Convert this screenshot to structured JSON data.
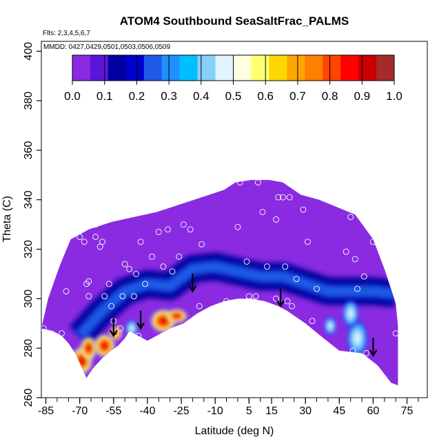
{
  "chart_data": {
    "type": "heatmap",
    "title": "ATOM4 Southbound SeaSaltFrac_PALMS",
    "subtitle_flights": "Flts: 2,3,4,5,6,7",
    "subtitle_dates": "MMDD: 0427,0429,0501,0503,0506,0509",
    "xlabel": "Latitude (deg N)",
    "ylabel": "Theta (C)",
    "xlim": [
      -87,
      84
    ],
    "ylim": [
      260,
      404
    ],
    "x_ticks": [
      -85,
      -70,
      -55,
      -40,
      -25,
      -10,
      5,
      15,
      30,
      45,
      60,
      75
    ],
    "x_tick_labels": [
      "-85",
      "-70",
      "-55",
      "-40",
      "-25",
      "-10",
      "5",
      "15",
      "30",
      "45",
      "60",
      "75"
    ],
    "y_ticks": [
      260,
      280,
      300,
      320,
      340,
      360,
      380,
      400
    ],
    "y_tick_labels": [
      "260",
      "280",
      "300",
      "320",
      "340",
      "360",
      "380",
      "400"
    ],
    "colorbar": {
      "min": 0.0,
      "max": 1.0,
      "ticks": [
        0.0,
        0.1,
        0.2,
        0.3,
        0.4,
        0.5,
        0.6,
        0.7,
        0.8,
        0.9,
        1.0
      ],
      "tick_labels": [
        "0.0",
        "0.1",
        "0.2",
        "0.3",
        "0.4",
        "0.5",
        "0.6",
        "0.7",
        "0.8",
        "0.9",
        "1.0"
      ],
      "colors": [
        "#8a2be2",
        "#5a16d8",
        "#0000a0",
        "#0000cd",
        "#1e5ae6",
        "#1e90ff",
        "#00bfff",
        "#87cefa",
        "#e0f4ff",
        "#ffffe0",
        "#ffff70",
        "#ffd700",
        "#ffa500",
        "#ff7f00",
        "#ff4500",
        "#ff0000",
        "#c80000",
        "#a52a2a"
      ]
    },
    "fill_color": "#8a2be2",
    "domain_top": [
      [
        -87,
        288
      ],
      [
        -84,
        300
      ],
      [
        -79,
        313
      ],
      [
        -74,
        324
      ],
      [
        -66,
        328
      ],
      [
        -56,
        331
      ],
      [
        -46,
        333
      ],
      [
        -36,
        335
      ],
      [
        -26,
        338
      ],
      [
        -16,
        341
      ],
      [
        -6,
        344
      ],
      [
        -1,
        347
      ],
      [
        6,
        348
      ],
      [
        14,
        348
      ],
      [
        20,
        347
      ],
      [
        28,
        342
      ],
      [
        36,
        340
      ],
      [
        44,
        337
      ],
      [
        52,
        334
      ],
      [
        60,
        324
      ],
      [
        65,
        312
      ],
      [
        70,
        298
      ],
      [
        71,
        289
      ]
    ],
    "domain_bottom": [
      [
        71,
        265
      ],
      [
        68,
        266
      ],
      [
        62,
        273
      ],
      [
        55,
        278
      ],
      [
        45,
        279
      ],
      [
        38,
        284
      ],
      [
        30,
        290
      ],
      [
        22,
        295
      ],
      [
        18,
        297
      ],
      [
        12,
        299
      ],
      [
        6,
        300
      ],
      [
        0,
        300
      ],
      [
        -6,
        299
      ],
      [
        -12,
        297
      ],
      [
        -18,
        294
      ],
      [
        -24,
        290
      ],
      [
        -30,
        288
      ],
      [
        -36,
        285
      ],
      [
        -40,
        283
      ],
      [
        -44,
        285
      ],
      [
        -48,
        287
      ],
      [
        -50,
        284
      ],
      [
        -53,
        281
      ],
      [
        -56,
        279
      ],
      [
        -60,
        276
      ],
      [
        -64,
        272
      ],
      [
        -67,
        268
      ],
      [
        -70,
        274
      ],
      [
        -72,
        278
      ],
      [
        -75,
        282
      ],
      [
        -78,
        285
      ],
      [
        -82,
        287
      ],
      [
        -87,
        288
      ]
    ],
    "blue_band": [
      [
        -70,
        285
      ],
      [
        -60,
        295
      ],
      [
        -50,
        303
      ],
      [
        -40,
        306
      ],
      [
        -30,
        305
      ],
      [
        -20,
        312
      ],
      [
        -10,
        313
      ],
      [
        0,
        311
      ],
      [
        10,
        309
      ],
      [
        20,
        309
      ],
      [
        30,
        306
      ],
      [
        40,
        303
      ],
      [
        50,
        303
      ],
      [
        60,
        303
      ],
      [
        70,
        302
      ]
    ],
    "hot_spots": [
      {
        "x": -69,
        "y": 275,
        "rx": 5,
        "ry": 6,
        "value": 0.85
      },
      {
        "x": -66,
        "y": 280,
        "rx": 4,
        "ry": 5,
        "value": 0.7
      },
      {
        "x": -59,
        "y": 281,
        "rx": 5,
        "ry": 5,
        "value": 0.82
      },
      {
        "x": -54,
        "y": 286,
        "rx": 3,
        "ry": 3,
        "value": 0.6
      },
      {
        "x": -47,
        "y": 288,
        "rx": 3,
        "ry": 4,
        "value": 0.45
      },
      {
        "x": -33,
        "y": 291,
        "rx": 6,
        "ry": 5,
        "value": 0.88
      },
      {
        "x": -27,
        "y": 293,
        "rx": 5,
        "ry": 3,
        "value": 0.6
      },
      {
        "x": 53,
        "y": 284,
        "rx": 5,
        "ry": 8,
        "value": 0.5
      },
      {
        "x": 50,
        "y": 294,
        "rx": 4,
        "ry": 6,
        "value": 0.35
      },
      {
        "x": 41,
        "y": 289,
        "rx": 3,
        "ry": 4,
        "value": 0.3
      }
    ],
    "arrows": [
      [
        -55,
        285
      ],
      [
        -43,
        288
      ],
      [
        -20,
        303
      ],
      [
        19,
        297
      ],
      [
        60,
        277
      ]
    ],
    "observation_points": [
      [
        -86,
        288
      ],
      [
        -79,
        321
      ],
      [
        -78,
        286
      ],
      [
        -76,
        303
      ],
      [
        -72,
        328
      ],
      [
        -70,
        325
      ],
      [
        -69,
        331
      ],
      [
        -68,
        323
      ],
      [
        -67,
        306
      ],
      [
        -66,
        307
      ],
      [
        -66,
        301
      ],
      [
        -63,
        330
      ],
      [
        -63,
        325
      ],
      [
        -61,
        321
      ],
      [
        -60,
        323
      ],
      [
        -59,
        301
      ],
      [
        -57,
        306
      ],
      [
        -56,
        297
      ],
      [
        -55,
        291
      ],
      [
        -54,
        286
      ],
      [
        -52,
        288
      ],
      [
        -51,
        301
      ],
      [
        -50,
        314
      ],
      [
        -48,
        312
      ],
      [
        -46,
        301
      ],
      [
        -45,
        310
      ],
      [
        -44,
        285
      ],
      [
        -43,
        323
      ],
      [
        -41,
        306
      ],
      [
        -38,
        317
      ],
      [
        -35,
        327
      ],
      [
        -33,
        313
      ],
      [
        -31,
        328
      ],
      [
        -29,
        311
      ],
      [
        -26,
        317
      ],
      [
        -24,
        330
      ],
      [
        -21,
        328
      ],
      [
        -17,
        297
      ],
      [
        -16,
        322
      ],
      [
        -5,
        299
      ],
      [
        0,
        329
      ],
      [
        1,
        347
      ],
      [
        4,
        315
      ],
      [
        5,
        301
      ],
      [
        8,
        301
      ],
      [
        9,
        347
      ],
      [
        11,
        335
      ],
      [
        13,
        313
      ],
      [
        17,
        300
      ],
      [
        17,
        332
      ],
      [
        18,
        341
      ],
      [
        20,
        341
      ],
      [
        21,
        313
      ],
      [
        22,
        299
      ],
      [
        23,
        341
      ],
      [
        24,
        297
      ],
      [
        26,
        308
      ],
      [
        29,
        336
      ],
      [
        31,
        323
      ],
      [
        33,
        291
      ],
      [
        35,
        304
      ],
      [
        43,
        278
      ],
      [
        48,
        319
      ],
      [
        50,
        333
      ],
      [
        51,
        279
      ],
      [
        52,
        316
      ],
      [
        53,
        304
      ],
      [
        56,
        309
      ],
      [
        57,
        278
      ],
      [
        60,
        323
      ],
      [
        62,
        333
      ],
      [
        70,
        286
      ]
    ]
  }
}
